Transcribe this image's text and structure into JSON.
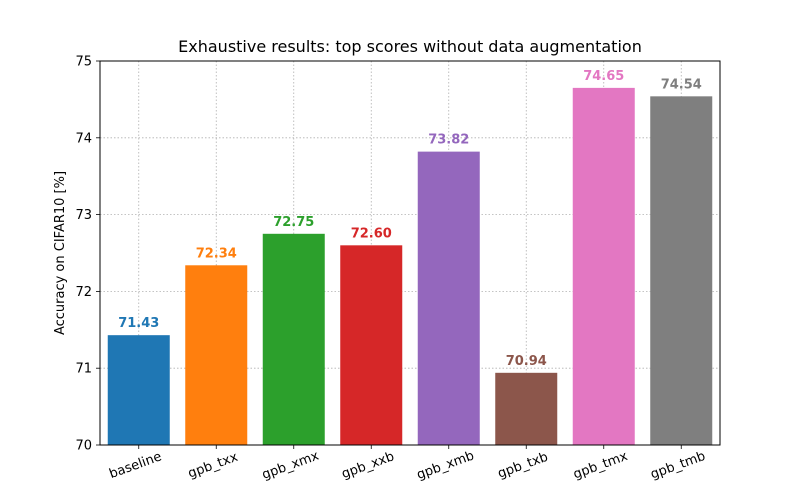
{
  "chart_data": {
    "type": "bar",
    "title": "Exhaustive results: top scores without data augmentation",
    "xlabel": "",
    "ylabel": "Accuracy on CIFAR10 [%]",
    "ylim": [
      70,
      75
    ],
    "yticks": [
      70,
      71,
      72,
      73,
      74,
      75
    ],
    "grid": true,
    "categories": [
      "baseline",
      "gpb_txx",
      "gpb_xmx",
      "gpb_xxb",
      "gpb_xmb",
      "gpb_txb",
      "gpb_tmx",
      "gpb_tmb"
    ],
    "values": [
      71.43,
      72.34,
      72.75,
      72.6,
      73.82,
      70.94,
      74.65,
      74.54
    ],
    "value_labels": [
      "71.43",
      "72.34",
      "72.75",
      "72.60",
      "73.82",
      "70.94",
      "74.65",
      "74.54"
    ],
    "colors": [
      "#1f77b4",
      "#ff7f0e",
      "#2ca02c",
      "#d62728",
      "#9467bd",
      "#8c564b",
      "#e377c2",
      "#7f7f7f"
    ]
  }
}
